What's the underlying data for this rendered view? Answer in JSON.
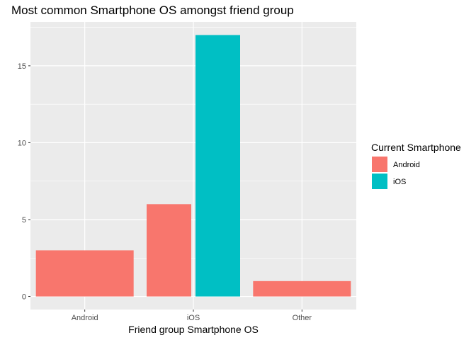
{
  "chart_data": {
    "type": "bar",
    "title": "Most common Smartphone OS amongst friend group",
    "xlabel": "Friend group Smartphone OS",
    "ylabel": "",
    "categories": [
      "Android",
      "iOS",
      "Other"
    ],
    "series": [
      {
        "name": "Android",
        "color": "#F8766D",
        "values": [
          3,
          6,
          1
        ]
      },
      {
        "name": "iOS",
        "color": "#00BFC4",
        "values": [
          null,
          17,
          null
        ]
      }
    ],
    "ylim": [
      0,
      18
    ],
    "yticks": [
      0,
      5,
      10,
      15
    ],
    "grid": true,
    "legend": {
      "title": "Current Smartphone",
      "position": "right"
    }
  }
}
